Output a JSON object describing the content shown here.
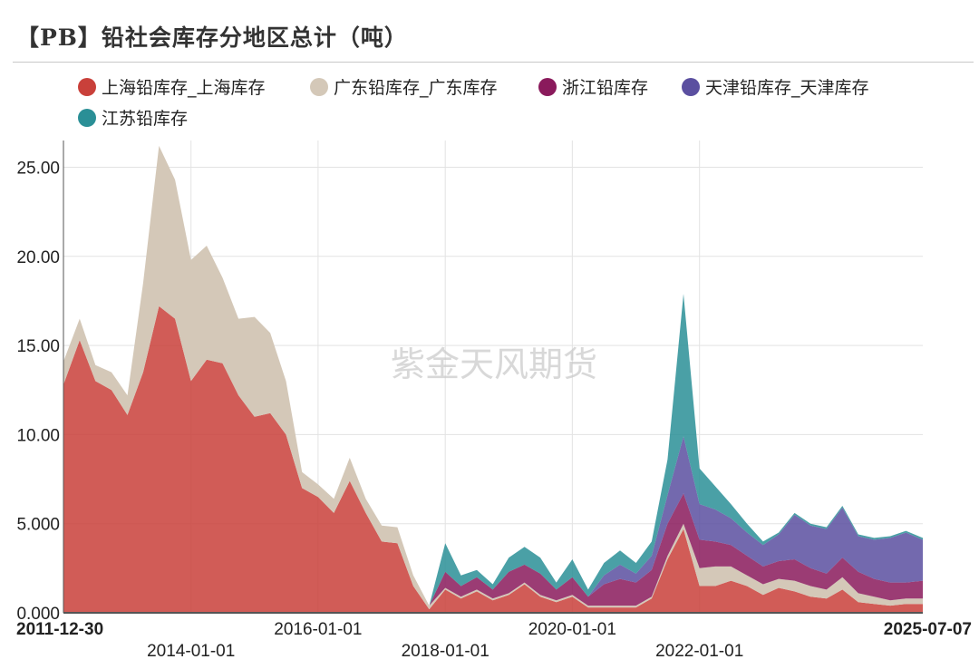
{
  "title": "【PB】铅社会库存分地区总计（吨）",
  "chart_data": {
    "type": "area",
    "stacked": true,
    "watermark": "紫金天风期货",
    "x_start": "2011-12-30",
    "x_end": "2025-07-07",
    "x_tick_labels": [
      "2011-12-30",
      "2014-01-01",
      "2016-01-01",
      "2018-01-01",
      "2020-01-01",
      "2022-01-01",
      "2025-07-07"
    ],
    "ylim": [
      0,
      26.5
    ],
    "y_tick_labels": [
      "0.000",
      "5.000",
      "10.00",
      "15.00",
      "20.00",
      "25.00"
    ],
    "grid": true,
    "legend_position": "top",
    "series": [
      {
        "name": "上海铅库存_上海库存",
        "color": "#c9403a",
        "points": [
          [
            "2011-12-30",
            12.8
          ],
          [
            "2012-04-01",
            15.3
          ],
          [
            "2012-07-01",
            13.0
          ],
          [
            "2012-10-01",
            12.5
          ],
          [
            "2013-01-01",
            11.1
          ],
          [
            "2013-04-01",
            13.5
          ],
          [
            "2013-07-01",
            17.2
          ],
          [
            "2013-10-01",
            16.5
          ],
          [
            "2014-01-01",
            13.0
          ],
          [
            "2014-04-01",
            14.2
          ],
          [
            "2014-07-01",
            14.0
          ],
          [
            "2014-10-01",
            12.2
          ],
          [
            "2015-01-01",
            11.0
          ],
          [
            "2015-04-01",
            11.2
          ],
          [
            "2015-07-01",
            10.0
          ],
          [
            "2015-10-01",
            7.0
          ],
          [
            "2016-01-01",
            6.5
          ],
          [
            "2016-04-01",
            5.6
          ],
          [
            "2016-07-01",
            7.4
          ],
          [
            "2016-10-01",
            5.6
          ],
          [
            "2017-01-01",
            4.0
          ],
          [
            "2017-04-01",
            3.9
          ],
          [
            "2017-07-01",
            1.5
          ],
          [
            "2017-10-01",
            0.2
          ],
          [
            "2018-01-01",
            1.3
          ],
          [
            "2018-04-01",
            0.8
          ],
          [
            "2018-07-01",
            1.2
          ],
          [
            "2018-10-01",
            0.7
          ],
          [
            "2019-01-01",
            1.0
          ],
          [
            "2019-04-01",
            1.6
          ],
          [
            "2019-07-01",
            0.9
          ],
          [
            "2019-10-01",
            0.6
          ],
          [
            "2020-01-01",
            0.9
          ],
          [
            "2020-04-01",
            0.3
          ],
          [
            "2020-07-01",
            0.3
          ],
          [
            "2020-10-01",
            0.3
          ],
          [
            "2021-01-01",
            0.3
          ],
          [
            "2021-04-01",
            0.8
          ],
          [
            "2021-07-01",
            3.0
          ],
          [
            "2021-10-01",
            4.7
          ],
          [
            "2022-01-01",
            1.5
          ],
          [
            "2022-04-01",
            1.5
          ],
          [
            "2022-07-01",
            1.8
          ],
          [
            "2022-10-01",
            1.5
          ],
          [
            "2023-01-01",
            1.0
          ],
          [
            "2023-04-01",
            1.4
          ],
          [
            "2023-07-01",
            1.2
          ],
          [
            "2023-10-01",
            0.9
          ],
          [
            "2024-01-01",
            0.8
          ],
          [
            "2024-04-01",
            1.3
          ],
          [
            "2024-07-01",
            0.6
          ],
          [
            "2024-10-01",
            0.5
          ],
          [
            "2025-01-01",
            0.4
          ],
          [
            "2025-04-01",
            0.5
          ],
          [
            "2025-07-07",
            0.5
          ]
        ]
      },
      {
        "name": "广东铅库存_广东库存",
        "color": "#d4c8b8",
        "points": [
          [
            "2011-12-30",
            1.3
          ],
          [
            "2012-04-01",
            1.2
          ],
          [
            "2012-07-01",
            0.9
          ],
          [
            "2012-10-01",
            1.0
          ],
          [
            "2013-01-01",
            1.1
          ],
          [
            "2013-04-01",
            5.0
          ],
          [
            "2013-07-01",
            9.0
          ],
          [
            "2013-10-01",
            7.8
          ],
          [
            "2014-01-01",
            6.8
          ],
          [
            "2014-04-01",
            6.4
          ],
          [
            "2014-07-01",
            4.8
          ],
          [
            "2014-10-01",
            4.3
          ],
          [
            "2015-01-01",
            5.6
          ],
          [
            "2015-04-01",
            4.5
          ],
          [
            "2015-07-01",
            3.0
          ],
          [
            "2015-10-01",
            0.9
          ],
          [
            "2016-01-01",
            0.7
          ],
          [
            "2016-04-01",
            0.8
          ],
          [
            "2016-07-01",
            1.3
          ],
          [
            "2016-10-01",
            0.8
          ],
          [
            "2017-01-01",
            0.9
          ],
          [
            "2017-04-01",
            0.9
          ],
          [
            "2017-07-01",
            0.6
          ],
          [
            "2017-10-01",
            0.2
          ],
          [
            "2018-01-01",
            0.1
          ],
          [
            "2018-04-01",
            0.1
          ],
          [
            "2018-07-01",
            0.1
          ],
          [
            "2018-10-01",
            0.1
          ],
          [
            "2019-01-01",
            0.1
          ],
          [
            "2019-04-01",
            0.1
          ],
          [
            "2019-07-01",
            0.1
          ],
          [
            "2019-10-01",
            0.1
          ],
          [
            "2020-01-01",
            0.1
          ],
          [
            "2020-04-01",
            0.1
          ],
          [
            "2020-07-01",
            0.1
          ],
          [
            "2020-10-01",
            0.1
          ],
          [
            "2021-01-01",
            0.1
          ],
          [
            "2021-04-01",
            0.1
          ],
          [
            "2021-07-01",
            0.2
          ],
          [
            "2021-10-01",
            0.3
          ],
          [
            "2022-01-01",
            1.0
          ],
          [
            "2022-04-01",
            1.1
          ],
          [
            "2022-07-01",
            0.8
          ],
          [
            "2022-10-01",
            0.6
          ],
          [
            "2023-01-01",
            0.6
          ],
          [
            "2023-04-01",
            0.5
          ],
          [
            "2023-07-01",
            0.6
          ],
          [
            "2023-10-01",
            0.6
          ],
          [
            "2024-01-01",
            0.5
          ],
          [
            "2024-04-01",
            0.7
          ],
          [
            "2024-07-01",
            0.5
          ],
          [
            "2024-10-01",
            0.4
          ],
          [
            "2025-01-01",
            0.3
          ],
          [
            "2025-04-01",
            0.3
          ],
          [
            "2025-07-07",
            0.3
          ]
        ]
      },
      {
        "name": "浙江铅库存",
        "color": "#8a1a5c",
        "points": [
          [
            "2011-12-30",
            0
          ],
          [
            "2017-10-01",
            0
          ],
          [
            "2018-01-01",
            0.9
          ],
          [
            "2018-04-01",
            0.6
          ],
          [
            "2018-07-01",
            0.7
          ],
          [
            "2018-10-01",
            0.5
          ],
          [
            "2019-01-01",
            1.2
          ],
          [
            "2019-04-01",
            1.0
          ],
          [
            "2019-07-01",
            1.2
          ],
          [
            "2019-10-01",
            0.6
          ],
          [
            "2020-01-01",
            1.0
          ],
          [
            "2020-04-01",
            0.5
          ],
          [
            "2020-07-01",
            1.2
          ],
          [
            "2020-10-01",
            1.5
          ],
          [
            "2021-01-01",
            1.3
          ],
          [
            "2021-04-01",
            1.5
          ],
          [
            "2021-07-01",
            1.8
          ],
          [
            "2021-10-01",
            1.7
          ],
          [
            "2022-01-01",
            1.6
          ],
          [
            "2022-04-01",
            1.4
          ],
          [
            "2022-07-01",
            1.2
          ],
          [
            "2022-10-01",
            1.1
          ],
          [
            "2023-01-01",
            1.0
          ],
          [
            "2023-04-01",
            1.0
          ],
          [
            "2023-07-01",
            1.2
          ],
          [
            "2023-10-01",
            1.0
          ],
          [
            "2024-01-01",
            0.9
          ],
          [
            "2024-04-01",
            1.1
          ],
          [
            "2024-07-01",
            1.2
          ],
          [
            "2024-10-01",
            1.0
          ],
          [
            "2025-01-01",
            1.0
          ],
          [
            "2025-04-01",
            0.9
          ],
          [
            "2025-07-07",
            1.0
          ]
        ]
      },
      {
        "name": "天津铅库存_天津库存",
        "color": "#5b4fa0",
        "points": [
          [
            "2011-12-30",
            0
          ],
          [
            "2020-04-01",
            0
          ],
          [
            "2020-07-01",
            0.5
          ],
          [
            "2020-10-01",
            0.8
          ],
          [
            "2021-01-01",
            0.5
          ],
          [
            "2021-04-01",
            0.8
          ],
          [
            "2021-07-01",
            1.6
          ],
          [
            "2021-10-01",
            3.2
          ],
          [
            "2022-01-01",
            2.0
          ],
          [
            "2022-04-01",
            1.8
          ],
          [
            "2022-07-01",
            1.5
          ],
          [
            "2022-10-01",
            1.3
          ],
          [
            "2023-01-01",
            1.2
          ],
          [
            "2023-04-01",
            1.5
          ],
          [
            "2023-07-01",
            2.5
          ],
          [
            "2023-10-01",
            2.4
          ],
          [
            "2024-01-01",
            2.5
          ],
          [
            "2024-04-01",
            2.8
          ],
          [
            "2024-07-01",
            2.0
          ],
          [
            "2024-10-01",
            2.2
          ],
          [
            "2025-01-01",
            2.5
          ],
          [
            "2025-04-01",
            2.8
          ],
          [
            "2025-07-07",
            2.3
          ]
        ]
      },
      {
        "name": "江苏铅库存",
        "color": "#2a8f96",
        "points": [
          [
            "2011-12-30",
            0
          ],
          [
            "2017-10-01",
            0
          ],
          [
            "2018-01-01",
            1.6
          ],
          [
            "2018-04-01",
            0.6
          ],
          [
            "2018-07-01",
            0.4
          ],
          [
            "2018-10-01",
            0.3
          ],
          [
            "2019-01-01",
            0.8
          ],
          [
            "2019-04-01",
            1.0
          ],
          [
            "2019-07-01",
            0.9
          ],
          [
            "2019-10-01",
            0.4
          ],
          [
            "2020-01-01",
            1.0
          ],
          [
            "2020-04-01",
            0.4
          ],
          [
            "2020-07-01",
            0.7
          ],
          [
            "2020-10-01",
            0.8
          ],
          [
            "2021-01-01",
            0.6
          ],
          [
            "2021-04-01",
            0.8
          ],
          [
            "2021-07-01",
            2.0
          ],
          [
            "2021-10-01",
            8.0
          ],
          [
            "2022-01-01",
            2.0
          ],
          [
            "2022-04-01",
            1.3
          ],
          [
            "2022-07-01",
            0.8
          ],
          [
            "2022-10-01",
            0.5
          ],
          [
            "2023-01-01",
            0.2
          ],
          [
            "2023-04-01",
            0.1
          ],
          [
            "2023-07-01",
            0.1
          ],
          [
            "2023-10-01",
            0.1
          ],
          [
            "2024-01-01",
            0.1
          ],
          [
            "2024-04-01",
            0.1
          ],
          [
            "2024-07-01",
            0.1
          ],
          [
            "2024-10-01",
            0.1
          ],
          [
            "2025-01-01",
            0.1
          ],
          [
            "2025-04-01",
            0.1
          ],
          [
            "2025-07-07",
            0.1
          ]
        ]
      }
    ]
  }
}
